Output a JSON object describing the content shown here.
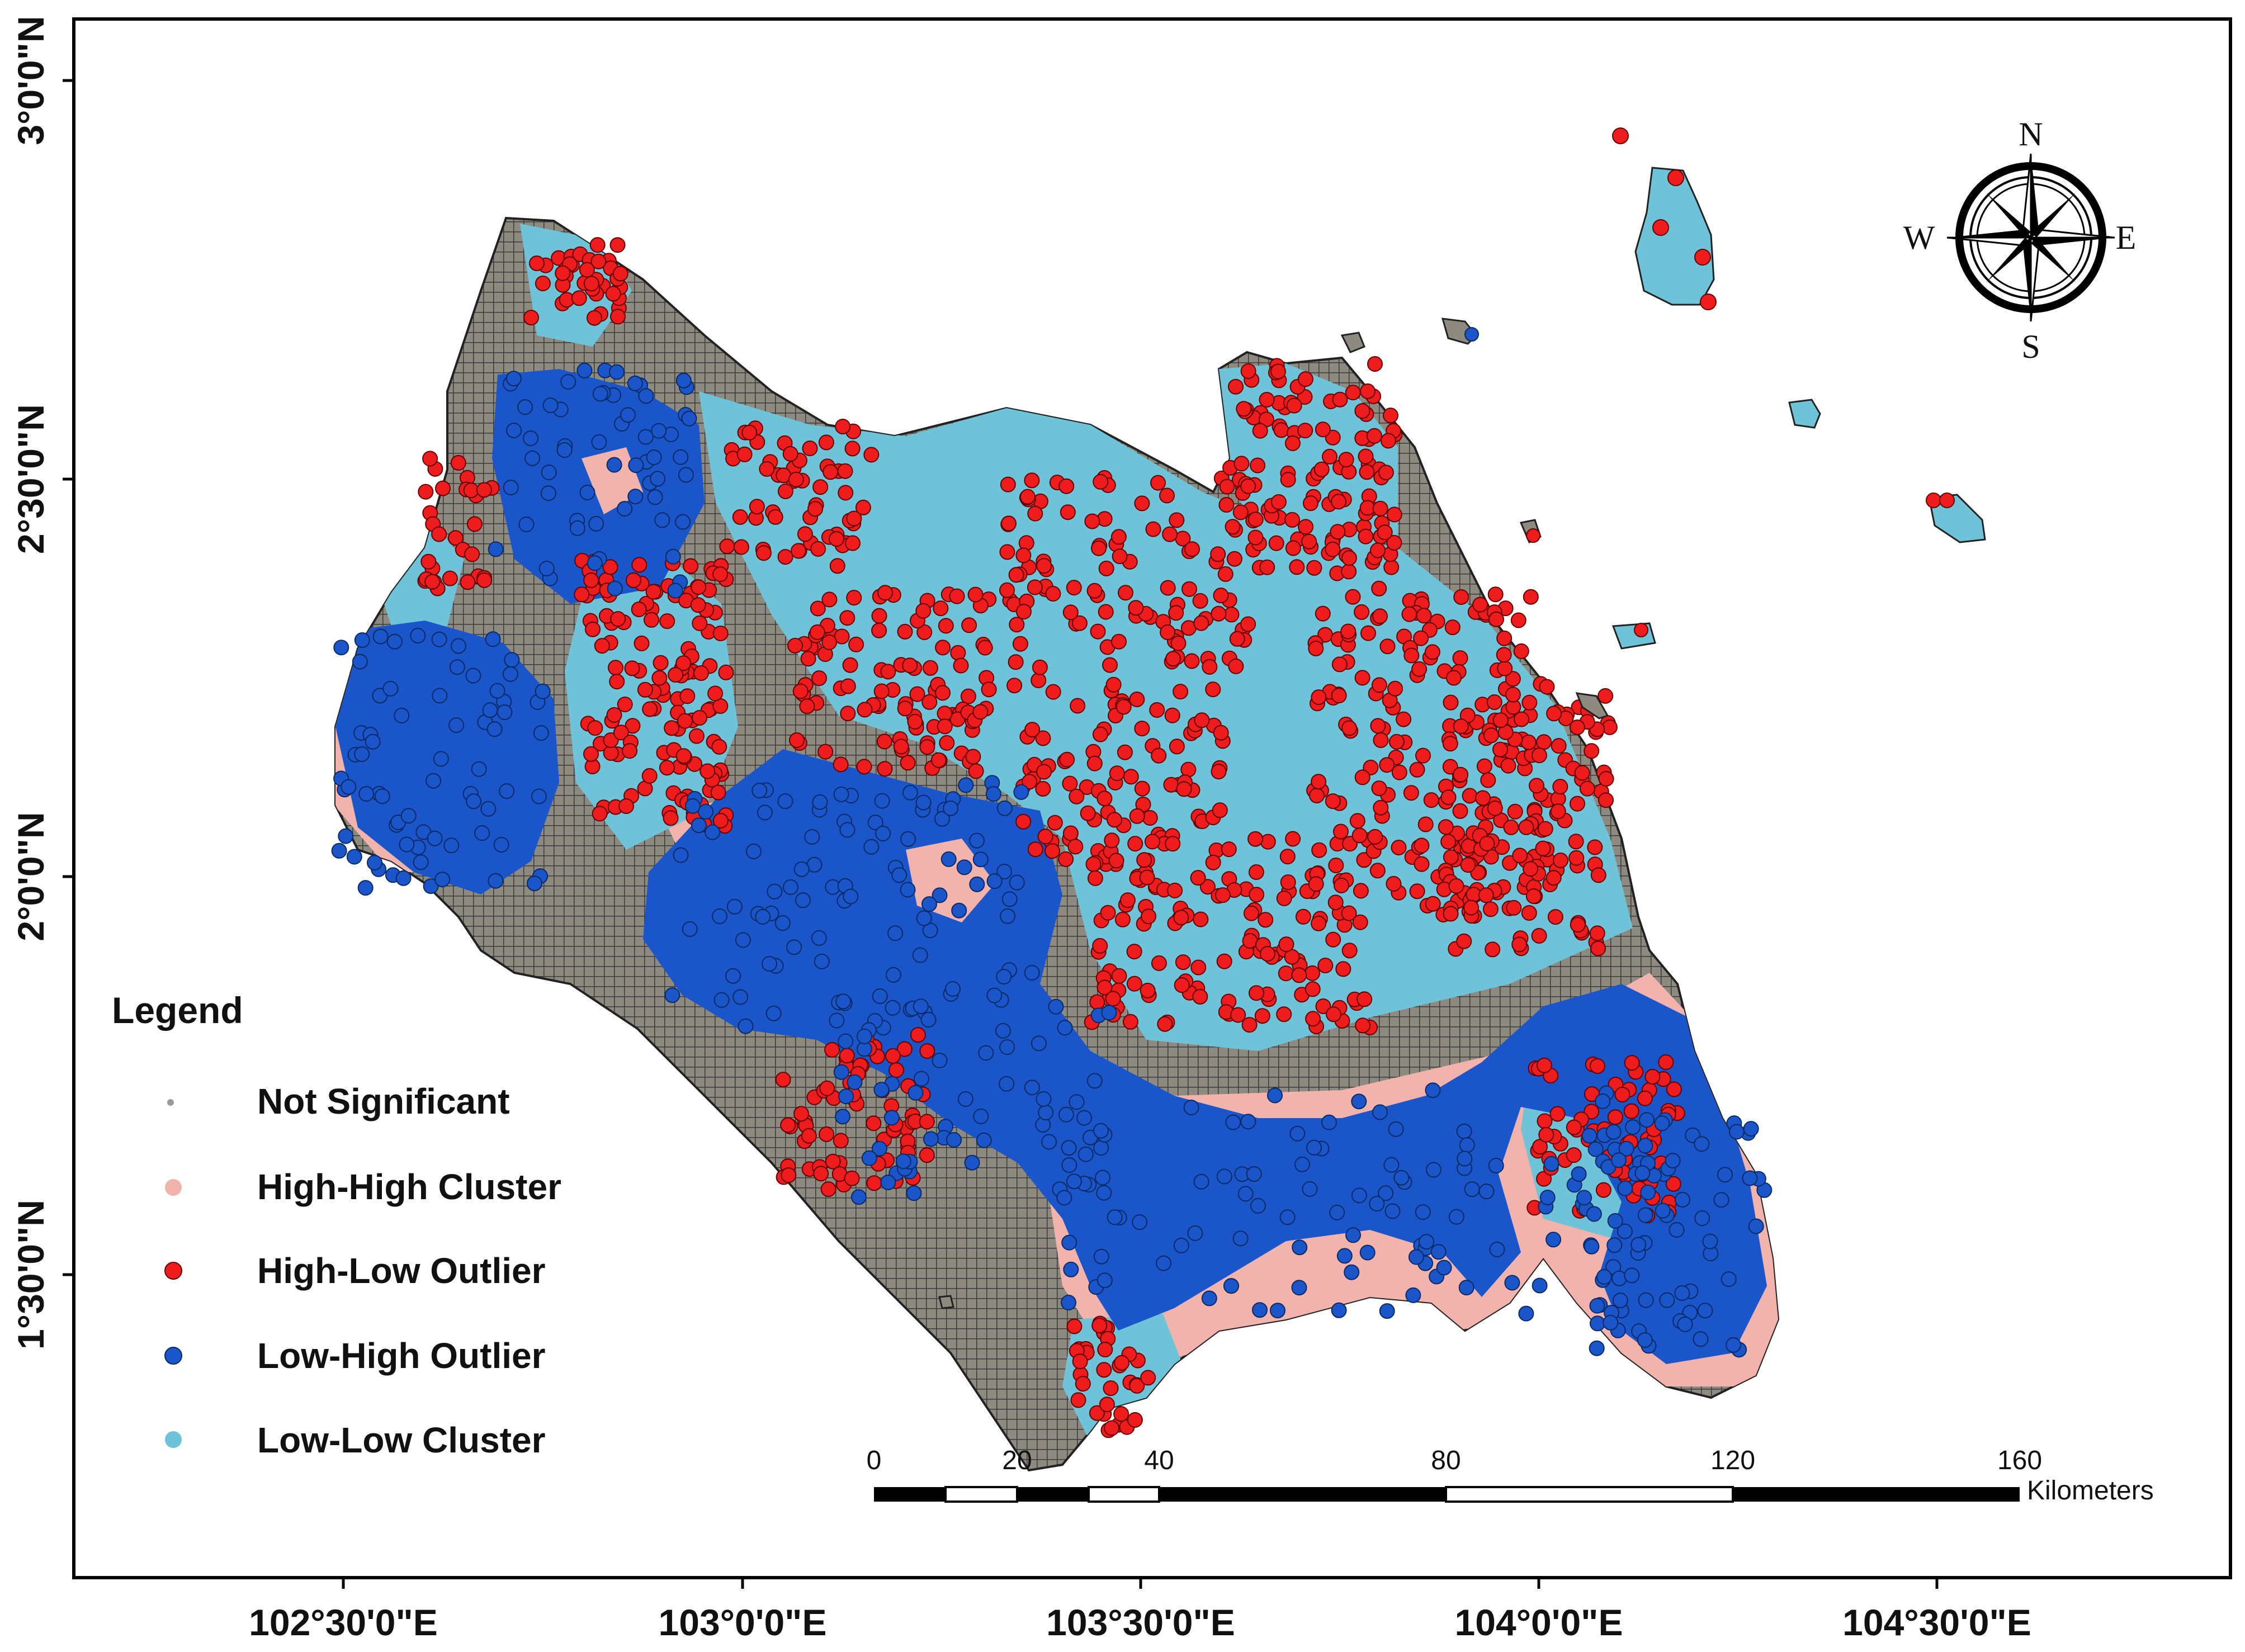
{
  "map": {
    "axes": {
      "longitude_ticks": [
        "102°30'0\"E",
        "103°0'0\"E",
        "103°30'0\"E",
        "104°0'0\"E",
        "104°30'0\"E"
      ],
      "latitude_ticks": [
        "3°0'0\"N",
        "2°30'0\"N",
        "2°0'0\"N",
        "1°30'0\"N"
      ]
    },
    "legend": {
      "title": "Legend",
      "items": [
        {
          "label": "Not Significant",
          "color": "#9a9a9a"
        },
        {
          "label": "High-High Cluster",
          "color": "#f2b3ad"
        },
        {
          "label": "High-Low Outlier",
          "color": "#ee1c1c"
        },
        {
          "label": "Low-High Outlier",
          "color": "#1a56c9"
        },
        {
          "label": "Low-Low Cluster",
          "color": "#6ec3d8"
        }
      ]
    },
    "scale_bar": {
      "labels": [
        "0",
        "20",
        "40",
        "80",
        "120",
        "160"
      ],
      "unit": "Kilometers"
    },
    "north_arrow": {
      "icon": "compass-rose-icon",
      "n": "N",
      "e": "E",
      "s": "S",
      "w": "W"
    },
    "colors": {
      "land": "#8f8a80",
      "grid": "#3a3a3a",
      "high_high": "#f2b3ad",
      "high_low": "#ee1c1c",
      "low_high": "#1a56c9",
      "low_low": "#6ec3d8"
    }
  }
}
